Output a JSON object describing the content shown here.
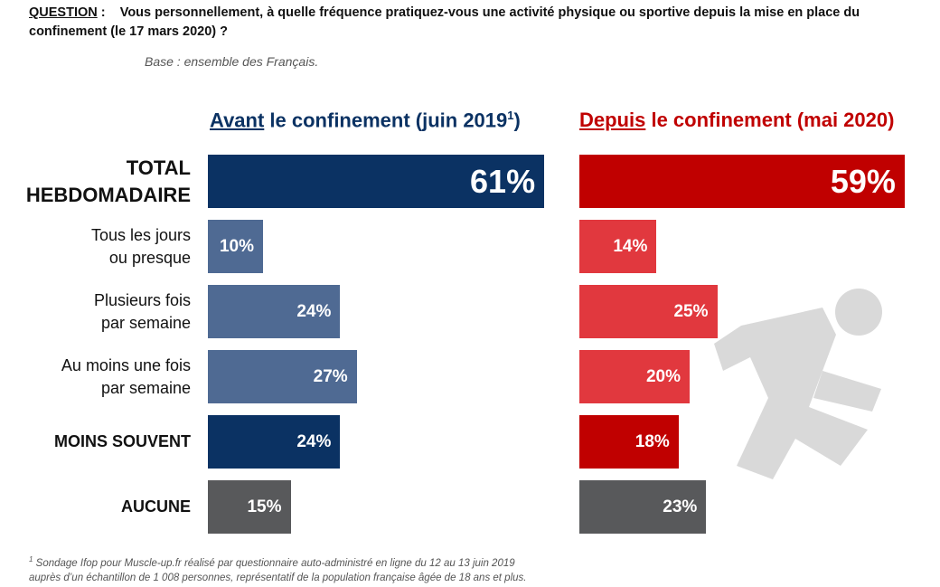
{
  "question": {
    "label": "QUESTION",
    "sep": " :",
    "text": "Vous personnellement, à quelle fréquence pratiquez-vous une activité physique ou sportive depuis la mise en place du confinement (le 17 mars 2020) ?"
  },
  "base": "Base : ensemble des Français.",
  "chart_data": {
    "type": "bar",
    "orientation": "horizontal",
    "categories": [
      "TOTAL\nHEBDOMADAIRE",
      "Tous les jours\nou presque",
      "Plusieurs fois\npar semaine",
      "Au moins une fois\npar semaine",
      "MOINS SOUVENT",
      "AUCUNE"
    ],
    "bold": [
      true,
      false,
      false,
      false,
      true,
      true
    ],
    "series": [
      {
        "name": [
          "Avant",
          " le confinement (juin 2019",
          "1",
          ")"
        ],
        "color": "#0b3263",
        "colors": [
          "#0b3263",
          "#4f6a93",
          "#4f6a93",
          "#4f6a93",
          "#0b3263",
          "#58595b"
        ],
        "values": [
          61,
          10,
          24,
          27,
          24,
          15
        ],
        "value_labels": [
          "61%",
          "10%",
          "24%",
          "27%",
          "24%",
          "15%"
        ]
      },
      {
        "name": [
          "Depuis",
          " le confinement (mai 2020)"
        ],
        "color": "#c00000",
        "colors": [
          "#c00000",
          "#e1383e",
          "#e1383e",
          "#e1383e",
          "#c00000",
          "#58595b"
        ],
        "values": [
          59,
          14,
          25,
          20,
          18,
          23
        ],
        "value_labels": [
          "59%",
          "14%",
          "25%",
          "20%",
          "18%",
          "23%"
        ]
      }
    ]
  },
  "footnote": {
    "marker": "1",
    "lines": [
      "Sondage Ifop pour Muscle-up.fr réalisé par questionnaire auto-administré en ligne du 12 au 13 juin 2019",
      "auprès d’un échantillon de 1 008 personnes, représentatif de la population française âgée de 18 ans et plus."
    ]
  }
}
